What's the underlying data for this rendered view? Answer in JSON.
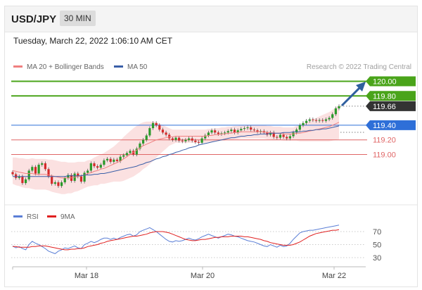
{
  "header": {
    "pair": "USD/JPY",
    "timeframe": "30 MIN"
  },
  "timestamp": "Tuesday, March 22, 2022 1:06:10 AM CET",
  "legend": {
    "ma20": "MA 20 + Bollinger Bands",
    "ma50": "MA 50",
    "rsi": "RSI",
    "ma9": "9MA"
  },
  "credit": "Research © 2022 Trading Central",
  "colors": {
    "candle_up": "#2a9a2a",
    "candle_down": "#d42a2a",
    "bollinger_fill": "#fbdede",
    "ma20": "#f08080",
    "ma50": "#3a5fa8",
    "resistance": "#4aa41a",
    "pivot": "#2e6fd8",
    "support": "#e06666",
    "last_price_tag": "#333333",
    "rsi": "#5b7fd6",
    "rsi_ma": "#e02020"
  },
  "chart_data": [
    {
      "type": "candlestick",
      "title": "",
      "x_tick_labels": [
        "Mar 18",
        "Mar 20",
        "Mar 22"
      ],
      "ylim": [
        118.3,
        120.1
      ],
      "levels": [
        {
          "value": 120.0,
          "label": "120.00",
          "kind": "resistance"
        },
        {
          "value": 119.8,
          "label": "119.80",
          "kind": "resistance"
        },
        {
          "value": 119.66,
          "label": "119.66",
          "kind": "last"
        },
        {
          "value": 119.4,
          "label": "119.40",
          "kind": "pivot"
        },
        {
          "value": 119.2,
          "label": "119.20",
          "kind": "support"
        },
        {
          "value": 119.0,
          "label": "119.00",
          "kind": "support"
        }
      ],
      "closes": [
        118.73,
        118.68,
        118.7,
        118.61,
        118.66,
        118.78,
        118.83,
        118.74,
        118.86,
        118.88,
        118.8,
        118.7,
        118.6,
        118.62,
        118.57,
        118.62,
        118.68,
        118.72,
        118.64,
        118.74,
        118.7,
        118.63,
        118.75,
        118.78,
        118.88,
        118.84,
        118.82,
        118.86,
        118.92,
        118.94,
        118.9,
        118.93,
        118.91,
        118.97,
        118.99,
        119.02,
        119.05,
        119.0,
        119.08,
        119.15,
        119.2,
        119.26,
        119.36,
        119.43,
        119.4,
        119.34,
        119.3,
        119.27,
        119.22,
        119.2,
        119.23,
        119.19,
        119.18,
        119.2,
        119.22,
        119.19,
        119.17,
        119.16,
        119.22,
        119.26,
        119.3,
        119.33,
        119.3,
        119.28,
        119.29,
        119.3,
        119.32,
        119.34,
        119.3,
        119.33,
        119.35,
        119.36,
        119.37,
        119.34,
        119.33,
        119.31,
        119.32,
        119.3,
        119.27,
        119.3,
        119.24,
        119.23,
        119.27,
        119.24,
        119.22,
        119.25,
        119.3,
        119.34,
        119.4,
        119.43,
        119.46,
        119.48,
        119.47,
        119.46,
        119.47,
        119.46,
        119.48,
        119.5,
        119.55,
        119.63,
        119.66
      ],
      "ma20": [
        118.78,
        118.77,
        118.76,
        118.75,
        118.74,
        118.74,
        118.74,
        118.73,
        118.73,
        118.73,
        118.73,
        118.72,
        118.71,
        118.7,
        118.69,
        118.68,
        118.68,
        118.68,
        118.68,
        118.69,
        118.7,
        118.71,
        118.72,
        118.74,
        118.75,
        118.77,
        118.78,
        118.8,
        118.81,
        118.83,
        118.85,
        118.87,
        118.89,
        118.91,
        118.94,
        118.97,
        119.0,
        119.03,
        119.06,
        119.09,
        119.12,
        119.14,
        119.16,
        119.18,
        119.2,
        119.21,
        119.22,
        119.23,
        119.24,
        119.24,
        119.25,
        119.25,
        119.25,
        119.25,
        119.25,
        119.25,
        119.25,
        119.25,
        119.25,
        119.25,
        119.26,
        119.26,
        119.27,
        119.27,
        119.28,
        119.28,
        119.29,
        119.29,
        119.3,
        119.3,
        119.31,
        119.31,
        119.31,
        119.31,
        119.31,
        119.31,
        119.31,
        119.31,
        119.3,
        119.3,
        119.29,
        119.29,
        119.29,
        119.28,
        119.28,
        119.28,
        119.28,
        119.29,
        119.29,
        119.3,
        119.31,
        119.32,
        119.33,
        119.34,
        119.35,
        119.36,
        119.37,
        119.38,
        119.4,
        119.42,
        119.44
      ],
      "ma50": [
        118.7,
        118.7,
        118.7,
        118.7,
        118.7,
        118.7,
        118.7,
        118.7,
        118.7,
        118.7,
        118.7,
        118.7,
        118.7,
        118.7,
        118.7,
        118.7,
        118.7,
        118.71,
        118.71,
        118.71,
        118.71,
        118.71,
        118.72,
        118.72,
        118.72,
        118.73,
        118.73,
        118.74,
        118.74,
        118.75,
        118.76,
        118.77,
        118.78,
        118.79,
        118.8,
        118.81,
        118.82,
        118.83,
        118.84,
        118.86,
        118.87,
        118.89,
        118.9,
        118.92,
        118.94,
        118.95,
        118.97,
        118.98,
        119.0,
        119.01,
        119.03,
        119.04,
        119.06,
        119.07,
        119.09,
        119.1,
        119.11,
        119.13,
        119.14,
        119.15,
        119.16,
        119.17,
        119.18,
        119.19,
        119.2,
        119.21,
        119.22,
        119.23,
        119.23,
        119.24,
        119.25,
        119.25,
        119.26,
        119.26,
        119.27,
        119.27,
        119.28,
        119.28,
        119.28,
        119.29,
        119.29,
        119.29,
        119.29,
        119.3,
        119.3,
        119.3,
        119.31,
        119.31,
        119.31,
        119.32,
        119.32,
        119.33,
        119.33,
        119.34,
        119.34,
        119.35,
        119.35,
        119.36,
        119.37,
        119.38,
        119.39
      ],
      "bollinger_half_width": [
        0.18,
        0.19,
        0.19,
        0.2,
        0.2,
        0.2,
        0.21,
        0.21,
        0.21,
        0.21,
        0.21,
        0.21,
        0.22,
        0.22,
        0.22,
        0.22,
        0.22,
        0.21,
        0.21,
        0.2,
        0.2,
        0.19,
        0.18,
        0.18,
        0.18,
        0.19,
        0.2,
        0.2,
        0.21,
        0.22,
        0.23,
        0.24,
        0.26,
        0.28,
        0.3,
        0.31,
        0.32,
        0.33,
        0.33,
        0.33,
        0.32,
        0.31,
        0.29,
        0.27,
        0.24,
        0.21,
        0.18,
        0.15,
        0.12,
        0.1,
        0.09,
        0.09,
        0.09,
        0.09,
        0.09,
        0.09,
        0.09,
        0.09,
        0.09,
        0.09,
        0.09,
        0.09,
        0.09,
        0.09,
        0.09,
        0.09,
        0.09,
        0.09,
        0.09,
        0.09,
        0.09,
        0.09,
        0.09,
        0.09,
        0.09,
        0.09,
        0.09,
        0.09,
        0.09,
        0.09,
        0.09,
        0.09,
        0.09,
        0.09,
        0.09,
        0.09,
        0.09,
        0.1,
        0.11,
        0.12,
        0.13,
        0.14,
        0.15,
        0.16,
        0.17,
        0.18,
        0.19,
        0.2,
        0.21,
        0.22,
        0.23
      ]
    },
    {
      "type": "line",
      "title": "",
      "y_tick_labels": [
        "70",
        "50",
        "30"
      ],
      "ylim": [
        20,
        80
      ],
      "series": [
        {
          "name": "RSI",
          "values": [
            48,
            45,
            47,
            44,
            42,
            50,
            55,
            52,
            50,
            47,
            44,
            40,
            38,
            36,
            40,
            42,
            45,
            44,
            46,
            48,
            45,
            44,
            50,
            52,
            55,
            53,
            55,
            58,
            60,
            60,
            58,
            60,
            58,
            61,
            63,
            65,
            66,
            63,
            65,
            70,
            72,
            74,
            76,
            73,
            70,
            66,
            62,
            58,
            55,
            54,
            56,
            55,
            56,
            58,
            60,
            58,
            57,
            59,
            62,
            64,
            66,
            64,
            62,
            60,
            62,
            64,
            66,
            65,
            63,
            62,
            60,
            58,
            56,
            55,
            54,
            52,
            50,
            48,
            47,
            50,
            48,
            46,
            49,
            47,
            48,
            52,
            58,
            63,
            68,
            70,
            71,
            72,
            72,
            73,
            74,
            75,
            76,
            77,
            78,
            79,
            80
          ]
        },
        {
          "name": "9MA",
          "values": [
            47,
            47,
            46,
            46,
            46,
            46,
            47,
            47,
            48,
            48,
            48,
            47,
            46,
            45,
            44,
            43,
            42,
            42,
            43,
            43,
            44,
            44,
            45,
            47,
            48,
            49,
            50,
            52,
            53,
            55,
            56,
            57,
            58,
            59,
            60,
            61,
            62,
            63,
            63,
            64,
            65,
            66,
            68,
            69,
            70,
            70,
            70,
            69,
            68,
            66,
            64,
            62,
            60,
            58,
            57,
            56,
            56,
            57,
            58,
            58,
            59,
            60,
            61,
            61,
            62,
            62,
            62,
            63,
            63,
            63,
            63,
            62,
            62,
            61,
            60,
            59,
            58,
            56,
            55,
            53,
            52,
            51,
            50,
            49,
            49,
            49,
            50,
            52,
            54,
            57,
            60,
            63,
            65,
            67,
            68,
            69,
            70,
            71,
            72,
            72,
            73
          ]
        }
      ]
    }
  ]
}
